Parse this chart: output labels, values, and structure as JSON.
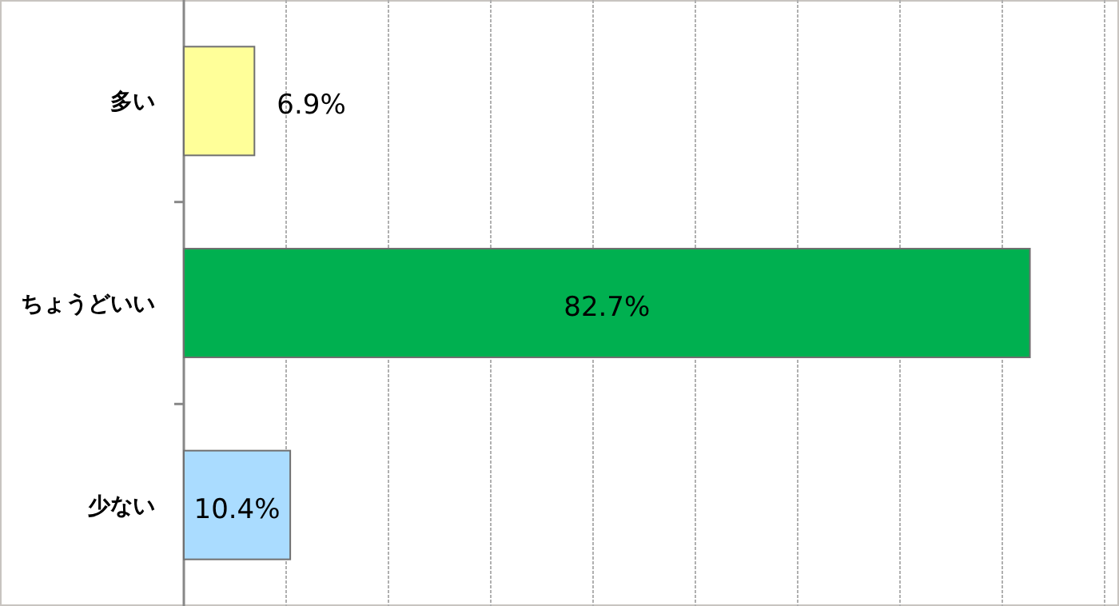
{
  "chart_data": {
    "type": "bar",
    "orientation": "horizontal",
    "categories": [
      "多い",
      "ちょうどいい",
      "少ない"
    ],
    "values": [
      6.9,
      82.7,
      10.4
    ],
    "colors": [
      "#ffff99",
      "#00b050",
      "#aadcff"
    ],
    "value_labels": [
      "6.9%",
      "82.7%",
      "10.4%"
    ],
    "xlim": [
      0,
      90
    ],
    "xticks": [
      {
        "value": 10,
        "label": null
      },
      {
        "value": 20,
        "label": null
      },
      {
        "value": 30,
        "label": null
      },
      {
        "value": 40,
        "label": null
      },
      {
        "value": 50,
        "label": null
      },
      {
        "value": 60,
        "label": null
      },
      {
        "value": 70,
        "label": null
      },
      {
        "value": 80,
        "label": null
      },
      {
        "value": 90,
        "label": null
      }
    ],
    "grid": "x",
    "tick_labels": "y"
  }
}
